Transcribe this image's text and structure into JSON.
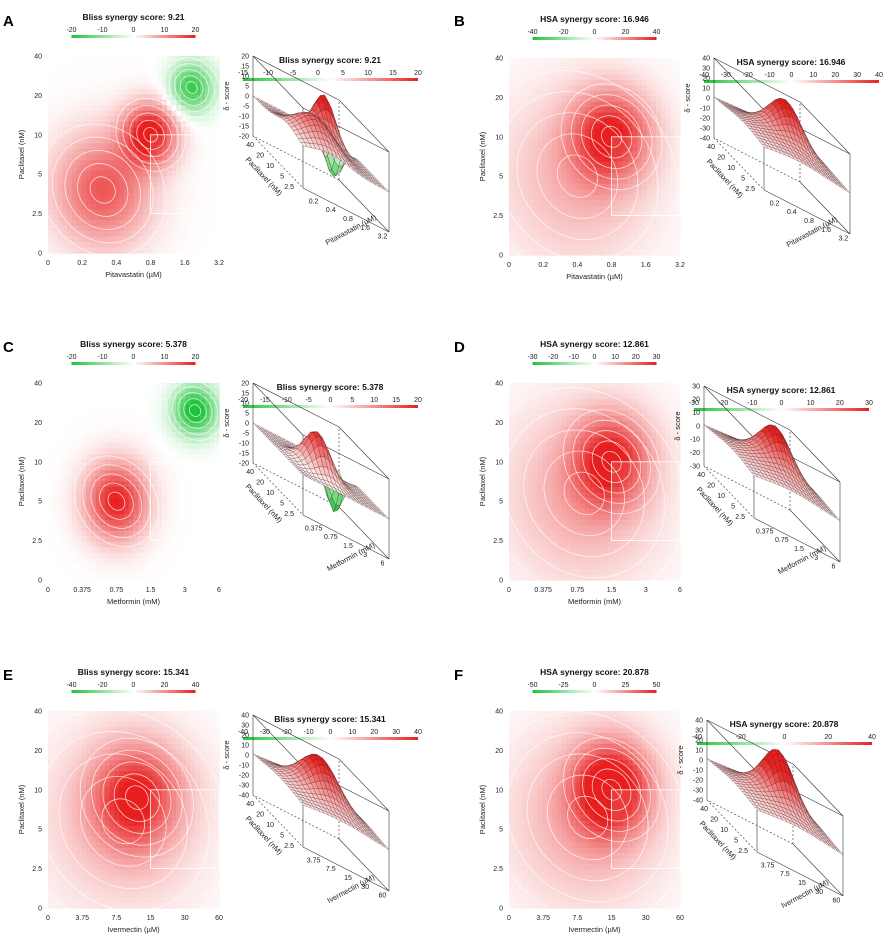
{
  "figure": {
    "colors": {
      "synergy": "#e81f1f",
      "antagonism": "#1fc43a",
      "neutral": "#ffffff",
      "contour": "#ffffff",
      "mesh": "#5a2a2a"
    }
  },
  "chart_data": [
    {
      "type": "heatmap",
      "panel": "A",
      "title": "Bliss synergy score: 9.21",
      "drug_x": "Pitavastatin (µM)",
      "drug_y": "Paclitaxel (nM)",
      "x_ticks": [
        "0",
        "0.2",
        "0.4",
        "0.8",
        "1.6",
        "3.2"
      ],
      "y_ticks": [
        "0",
        "2.5",
        "5",
        "10",
        "20",
        "40"
      ],
      "surface_y_ticks": [
        "2.5",
        "5",
        "10",
        "20",
        "40"
      ],
      "scale_ticks": [
        "-20",
        "-10",
        "0",
        "10",
        "20"
      ],
      "surface_scale_ticks": [
        "-15",
        "-10",
        "-5",
        "0",
        "5",
        "10",
        "15",
        "20"
      ],
      "z_ticks": [
        "20",
        "15",
        "10",
        "5",
        "0",
        "-5",
        "-10",
        "-15",
        "-20"
      ],
      "z_label": "δ - score",
      "z_range": [
        -20,
        20
      ],
      "peaks": [
        {
          "x": 3,
          "y": 3,
          "value": 22,
          "spread_x": 0.55,
          "spread_y": 0.55
        },
        {
          "x": 1.6,
          "y": 1.6,
          "value": 15,
          "spread_x": 1.0,
          "spread_y": 1.0
        },
        {
          "x": 4.2,
          "y": 4.2,
          "value": -18,
          "spread_x": 0.45,
          "spread_y": 0.45
        }
      ]
    },
    {
      "type": "heatmap",
      "panel": "B",
      "title": "HSA synergy score: 16.946",
      "drug_x": "Pitavastatin (µM)",
      "drug_y": "Paclitaxel (nM)",
      "x_ticks": [
        "0",
        "0.2",
        "0.4",
        "0.8",
        "1.6",
        "3.2"
      ],
      "y_ticks": [
        "0",
        "2.5",
        "5",
        "10",
        "20",
        "40"
      ],
      "surface_y_ticks": [
        "2.5",
        "5",
        "10",
        "20",
        "40"
      ],
      "scale_ticks": [
        "-40",
        "-20",
        "0",
        "20",
        "40"
      ],
      "surface_scale_ticks": [
        "-40",
        "-30",
        "-20",
        "-10",
        "0",
        "10",
        "20",
        "30",
        "40"
      ],
      "z_ticks": [
        "40",
        "30",
        "20",
        "10",
        "0",
        "-10",
        "-20",
        "-30",
        "-40"
      ],
      "z_label": "δ - score",
      "z_range": [
        -40,
        40
      ],
      "peaks": [
        {
          "x": 3,
          "y": 3,
          "value": 36,
          "spread_x": 0.8,
          "spread_y": 0.8
        },
        {
          "x": 2,
          "y": 2,
          "value": 14,
          "spread_x": 1.6,
          "spread_y": 1.6
        }
      ]
    },
    {
      "type": "heatmap",
      "panel": "C",
      "title": "Bliss synergy score: 5.378",
      "drug_x": "Metformin (mM)",
      "drug_y": "Paclitaxel (nM)",
      "x_ticks": [
        "0",
        "0.375",
        "0.75",
        "1.5",
        "3",
        "6"
      ],
      "y_ticks": [
        "0",
        "2.5",
        "5",
        "10",
        "20",
        "40"
      ],
      "surface_y_ticks": [
        "2.5",
        "5",
        "10",
        "20",
        "40"
      ],
      "scale_ticks": [
        "-20",
        "-10",
        "0",
        "10",
        "20"
      ],
      "surface_scale_ticks": [
        "-20",
        "-15",
        "-10",
        "-5",
        "0",
        "5",
        "10",
        "15",
        "20"
      ],
      "z_ticks": [
        "20",
        "15",
        "10",
        "5",
        "0",
        "-5",
        "-10",
        "-15",
        "-20"
      ],
      "z_label": "δ - score",
      "z_range": [
        -20,
        20
      ],
      "peaks": [
        {
          "x": 2,
          "y": 2,
          "value": 20,
          "spread_x": 0.65,
          "spread_y": 0.7
        },
        {
          "x": 4.3,
          "y": 4.3,
          "value": -22,
          "spread_x": 0.45,
          "spread_y": 0.45
        }
      ]
    },
    {
      "type": "heatmap",
      "panel": "D",
      "title": "HSA synergy score: 12.861",
      "drug_x": "Metformin (mM)",
      "drug_y": "Paclitaxel (nM)",
      "x_ticks": [
        "0",
        "0.375",
        "0.75",
        "1.5",
        "3",
        "6"
      ],
      "y_ticks": [
        "0",
        "2.5",
        "5",
        "10",
        "20",
        "40"
      ],
      "surface_y_ticks": [
        "2.5",
        "5",
        "10",
        "20",
        "40"
      ],
      "scale_ticks": [
        "-30",
        "-20",
        "-10",
        "0",
        "10",
        "20",
        "30"
      ],
      "surface_scale_ticks": [
        "-30",
        "-20",
        "-10",
        "0",
        "10",
        "20",
        "30"
      ],
      "z_ticks": [
        "30",
        "20",
        "10",
        "0",
        "-10",
        "-20",
        "-30"
      ],
      "z_label": "δ - score",
      "z_range": [
        -30,
        30
      ],
      "peaks": [
        {
          "x": 3,
          "y": 3,
          "value": 26,
          "spread_x": 0.75,
          "spread_y": 0.8
        },
        {
          "x": 2.2,
          "y": 2.2,
          "value": 12,
          "spread_x": 1.6,
          "spread_y": 1.6
        }
      ]
    },
    {
      "type": "heatmap",
      "panel": "E",
      "title": "Bliss synergy score: 15.341",
      "drug_x": "Ivermectin (µM)",
      "drug_y": "Paclitaxel (nM)",
      "x_ticks": [
        "0",
        "3.75",
        "7.5",
        "15",
        "30",
        "60"
      ],
      "y_ticks": [
        "0",
        "2.5",
        "5",
        "10",
        "20",
        "40"
      ],
      "surface_y_ticks": [
        "2.5",
        "5",
        "10",
        "20",
        "40"
      ],
      "scale_ticks": [
        "-40",
        "-20",
        "0",
        "20",
        "40"
      ],
      "surface_scale_ticks": [
        "-40",
        "-30",
        "-20",
        "-10",
        "0",
        "10",
        "20",
        "30",
        "40"
      ],
      "z_ticks": [
        "40",
        "30",
        "20",
        "10",
        "0",
        "-10",
        "-20",
        "-30",
        "-40"
      ],
      "z_label": "δ - score",
      "z_range": [
        -40,
        40
      ],
      "peaks": [
        {
          "x": 2.6,
          "y": 2.8,
          "value": 34,
          "spread_x": 0.9,
          "spread_y": 0.9
        },
        {
          "x": 2.2,
          "y": 2.2,
          "value": 12,
          "spread_x": 1.7,
          "spread_y": 1.7
        }
      ]
    },
    {
      "type": "heatmap",
      "panel": "F",
      "title": "HSA synergy score: 20.878",
      "drug_x": "Ivermectin (µM)",
      "drug_y": "Paclitaxel (nM)",
      "x_ticks": [
        "0",
        "3.75",
        "7.5",
        "15",
        "30",
        "60"
      ],
      "y_ticks": [
        "0",
        "2.5",
        "5",
        "10",
        "20",
        "40"
      ],
      "surface_y_ticks": [
        "2.5",
        "5",
        "10",
        "20",
        "40"
      ],
      "scale_ticks": [
        "-50",
        "-25",
        "0",
        "25",
        "50"
      ],
      "surface_scale_ticks": [
        "-40",
        "-20",
        "0",
        "20",
        "40"
      ],
      "z_ticks": [
        "40",
        "30",
        "20",
        "10",
        "0",
        "-10",
        "-20",
        "-30",
        "-40"
      ],
      "z_label": "δ - score",
      "z_range": [
        -40,
        40
      ],
      "peaks": [
        {
          "x": 3,
          "y": 3,
          "value": 44,
          "spread_x": 0.75,
          "spread_y": 0.8
        },
        {
          "x": 2.3,
          "y": 2.3,
          "value": 16,
          "spread_x": 1.6,
          "spread_y": 1.6
        }
      ]
    }
  ]
}
